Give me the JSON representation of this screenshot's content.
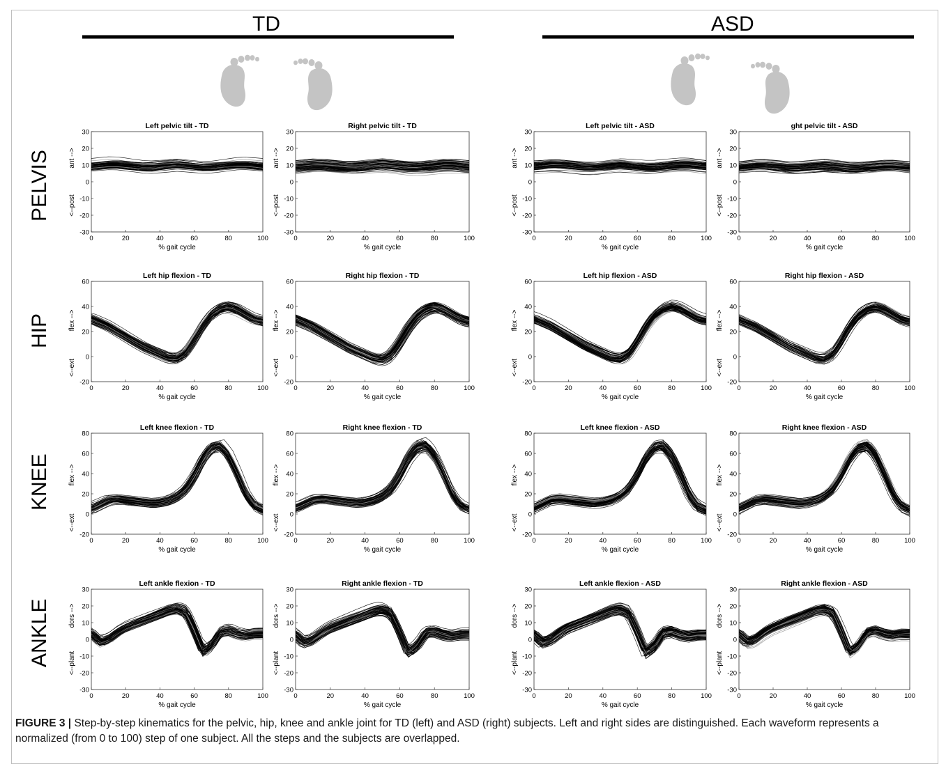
{
  "groups": [
    {
      "id": "td",
      "label": "TD"
    },
    {
      "id": "asd",
      "label": "ASD"
    }
  ],
  "row_labels": [
    "PELVIS",
    "HIP",
    "KNEE",
    "ANKLE"
  ],
  "caption": {
    "figure_label": "FIGURE 3 |",
    "text": " Step-by-step kinematics for the pelvic, hip, knee and ankle joint for TD (left) and ASD (right) subjects. Left and right sides are distinguished. Each waveform represents a normalized (from 0 to 100) step of one subject. All the steps and the subjects are overlapped."
  },
  "colors": {
    "curve": "#000000",
    "curve_light": "#8c8c8c",
    "foot": "#c4c4c4",
    "group_bar": "#000000"
  },
  "foot_icons": [
    "left-foot-icon",
    "right-foot-icon",
    "left-foot-icon",
    "right-foot-icon"
  ],
  "chart_data": [
    {
      "type": "line",
      "title": "Left pelvic tilt - TD",
      "xlabel": "% gait cycle",
      "ylabel_pos": "ant -->",
      "ylabel_neg": "<--post",
      "xlim": [
        0,
        100
      ],
      "ylim": [
        -30,
        30
      ],
      "xticks": [
        0,
        20,
        40,
        60,
        80,
        100
      ],
      "yticks": [
        -30,
        -20,
        -10,
        0,
        10,
        20,
        30
      ],
      "joint": "pelvis",
      "description": "many overlapping step waveforms, roughly flat between about -3 and 21 deg"
    },
    {
      "type": "line",
      "title": "Right pelvic tilt - TD",
      "xlabel": "% gait cycle",
      "ylabel_pos": "ant -->",
      "ylabel_neg": "<--post",
      "xlim": [
        0,
        100
      ],
      "ylim": [
        -30,
        30
      ],
      "xticks": [
        0,
        20,
        40,
        60,
        80,
        100
      ],
      "yticks": [
        -30,
        -20,
        -10,
        0,
        10,
        20,
        30
      ],
      "joint": "pelvis"
    },
    {
      "type": "line",
      "title": "Left pelvic tilt - ASD",
      "xlabel": "% gait cycle",
      "ylabel_pos": "ant -->",
      "ylabel_neg": "<--post",
      "xlim": [
        0,
        100
      ],
      "ylim": [
        -30,
        30
      ],
      "xticks": [
        0,
        20,
        40,
        60,
        80,
        100
      ],
      "yticks": [
        -30,
        -20,
        -10,
        0,
        10,
        20,
        30
      ],
      "joint": "pelvis"
    },
    {
      "type": "line",
      "title": "ght pelvic tilt - ASD",
      "xlabel": "% gait cycle",
      "ylabel_pos": "ant -->",
      "ylabel_neg": "<--post",
      "xlim": [
        0,
        100
      ],
      "ylim": [
        -30,
        30
      ],
      "xticks": [
        0,
        20,
        40,
        60,
        80,
        100
      ],
      "yticks": [
        -30,
        -20,
        -10,
        0,
        10,
        20,
        30
      ],
      "joint": "pelvis"
    },
    {
      "type": "line",
      "title": "Left hip flexion - TD",
      "xlabel": "% gait cycle",
      "ylabel_pos": "flex -->",
      "ylabel_neg": "<--ext",
      "xlim": [
        0,
        100
      ],
      "ylim": [
        -20,
        60
      ],
      "xticks": [
        0,
        20,
        40,
        60,
        80,
        100
      ],
      "yticks": [
        -20,
        0,
        20,
        40,
        60
      ],
      "joint": "hip"
    },
    {
      "type": "line",
      "title": "Right hip flexion - TD",
      "xlabel": "% gait cycle",
      "ylabel_pos": "flex -->",
      "ylabel_neg": "<--ext",
      "xlim": [
        0,
        100
      ],
      "ylim": [
        -20,
        60
      ],
      "xticks": [
        0,
        20,
        40,
        60,
        80,
        100
      ],
      "yticks": [
        -20,
        0,
        20,
        40,
        60
      ],
      "joint": "hip"
    },
    {
      "type": "line",
      "title": "Left hip flexion - ASD",
      "xlabel": "% gait cycle",
      "ylabel_pos": "flex -->",
      "ylabel_neg": "<--ext",
      "xlim": [
        0,
        100
      ],
      "ylim": [
        -20,
        60
      ],
      "xticks": [
        0,
        20,
        40,
        60,
        80,
        100
      ],
      "yticks": [
        -20,
        0,
        20,
        40,
        60
      ],
      "joint": "hip"
    },
    {
      "type": "line",
      "title": "Right hip flexion - ASD",
      "xlabel": "% gait cycle",
      "ylabel_pos": "flex -->",
      "ylabel_neg": "<--ext",
      "xlim": [
        0,
        100
      ],
      "ylim": [
        -20,
        60
      ],
      "xticks": [
        0,
        20,
        40,
        60,
        80,
        100
      ],
      "yticks": [
        -20,
        0,
        20,
        40,
        60
      ],
      "joint": "hip"
    },
    {
      "type": "line",
      "title": "Left knee flexion - TD",
      "xlabel": "% gait cycle",
      "ylabel_pos": "flex -->",
      "ylabel_neg": "<--ext",
      "xlim": [
        0,
        100
      ],
      "ylim": [
        -20,
        80
      ],
      "xticks": [
        0,
        20,
        40,
        60,
        80,
        100
      ],
      "yticks": [
        -20,
        0,
        20,
        40,
        60,
        80
      ],
      "joint": "knee"
    },
    {
      "type": "line",
      "title": "Right knee flexion - TD",
      "xlabel": "% gait cycle",
      "ylabel_pos": "flex -->",
      "ylabel_neg": "<--ext",
      "xlim": [
        0,
        100
      ],
      "ylim": [
        -20,
        80
      ],
      "xticks": [
        0,
        20,
        40,
        60,
        80,
        100
      ],
      "yticks": [
        -20,
        0,
        20,
        40,
        60,
        80
      ],
      "joint": "knee"
    },
    {
      "type": "line",
      "title": "Left knee flexion - ASD",
      "xlabel": "% gait cycle",
      "ylabel_pos": "flex -->",
      "ylabel_neg": "<--ext",
      "xlim": [
        0,
        100
      ],
      "ylim": [
        -20,
        80
      ],
      "xticks": [
        0,
        20,
        40,
        60,
        80,
        100
      ],
      "yticks": [
        -20,
        0,
        20,
        40,
        60,
        80
      ],
      "joint": "knee"
    },
    {
      "type": "line",
      "title": "Right knee flexion - ASD",
      "xlabel": "% gait cycle",
      "ylabel_pos": "flex -->",
      "ylabel_neg": "<--ext",
      "xlim": [
        0,
        100
      ],
      "ylim": [
        -20,
        80
      ],
      "xticks": [
        0,
        20,
        40,
        60,
        80,
        100
      ],
      "yticks": [
        -20,
        0,
        20,
        40,
        60,
        80
      ],
      "joint": "knee"
    },
    {
      "type": "line",
      "title": "Left ankle flexion - TD",
      "xlabel": "% gait cycle",
      "ylabel_pos": "dors -->",
      "ylabel_neg": "<--plant",
      "xlim": [
        0,
        100
      ],
      "ylim": [
        -30,
        30
      ],
      "xticks": [
        0,
        20,
        40,
        60,
        80,
        100
      ],
      "yticks": [
        -30,
        -20,
        -10,
        0,
        10,
        20,
        30
      ],
      "joint": "ankle"
    },
    {
      "type": "line",
      "title": "Right ankle flexion - TD",
      "xlabel": "% gait cycle",
      "ylabel_pos": "dors -->",
      "ylabel_neg": "<--plant",
      "xlim": [
        0,
        100
      ],
      "ylim": [
        -30,
        30
      ],
      "xticks": [
        0,
        20,
        40,
        60,
        80,
        100
      ],
      "yticks": [
        -30,
        -20,
        -10,
        0,
        10,
        20,
        30
      ],
      "joint": "ankle"
    },
    {
      "type": "line",
      "title": "Left ankle flexion - ASD",
      "xlabel": "% gait cycle",
      "ylabel_pos": "dors -->",
      "ylabel_neg": "<--plant",
      "xlim": [
        0,
        100
      ],
      "ylim": [
        -30,
        30
      ],
      "xticks": [
        0,
        20,
        40,
        60,
        80,
        100
      ],
      "yticks": [
        -30,
        -20,
        -10,
        0,
        10,
        20,
        30
      ],
      "joint": "ankle"
    },
    {
      "type": "line",
      "title": "Right ankle flexion - ASD",
      "xlabel": "% gait cycle",
      "ylabel_pos": "dors -->",
      "ylabel_neg": "<--plant",
      "xlim": [
        0,
        100
      ],
      "ylim": [
        -30,
        30
      ],
      "xticks": [
        0,
        20,
        40,
        60,
        80,
        100
      ],
      "yticks": [
        -30,
        -20,
        -10,
        0,
        10,
        20,
        30
      ],
      "joint": "ankle"
    }
  ],
  "mean_curves": {
    "x": [
      0,
      5,
      10,
      15,
      20,
      25,
      30,
      35,
      40,
      45,
      50,
      55,
      60,
      65,
      70,
      75,
      80,
      85,
      90,
      95,
      100
    ],
    "pelvis": [
      9,
      9.5,
      10,
      10,
      9.5,
      9,
      8.5,
      8.5,
      9,
      9.5,
      10,
      9.5,
      9,
      8.5,
      8.5,
      9,
      9.5,
      10,
      10,
      9.5,
      9
    ],
    "hip": [
      30,
      27,
      24,
      20,
      16,
      12,
      8,
      5,
      2,
      -1,
      -2,
      2,
      12,
      24,
      33,
      38,
      40,
      38,
      34,
      30,
      28
    ],
    "knee": [
      6,
      10,
      14,
      15,
      14,
      13,
      12,
      11,
      12,
      14,
      18,
      25,
      38,
      55,
      66,
      68,
      58,
      40,
      20,
      8,
      4
    ],
    "ankle": [
      3,
      -2,
      0,
      4,
      7,
      9,
      11,
      13,
      15,
      17,
      18,
      16,
      5,
      -8,
      -4,
      4,
      5,
      3,
      2,
      3,
      3
    ]
  }
}
